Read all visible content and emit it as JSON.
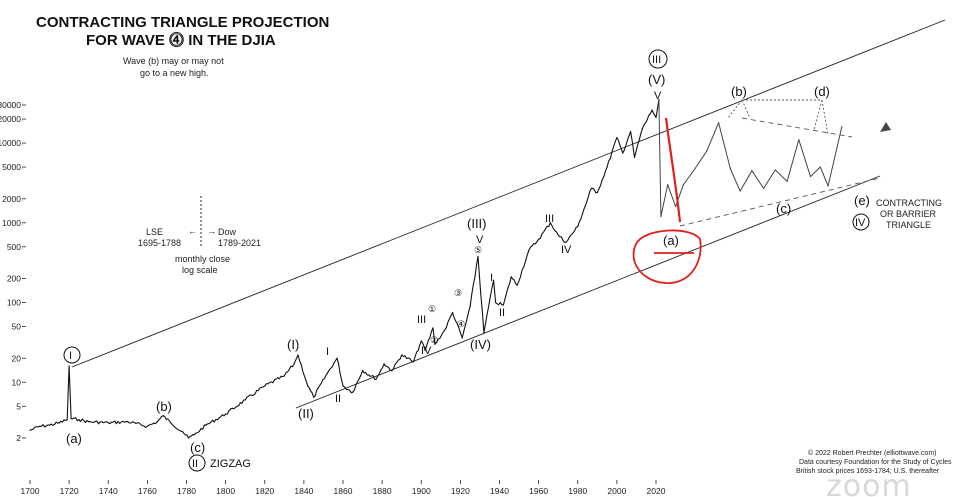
{
  "title_line1": "CONTRACTING TRIANGLE PROJECTION",
  "title_line2": "FOR WAVE ⓸ IN THE DJIA",
  "note_b_line1": "Wave (b) may or may not",
  "note_b_line2": "go to a new high.",
  "lse_label_1": "LSE",
  "lse_label_2": "1695-1788",
  "dow_label_1": "Dow",
  "dow_label_2": "1789-2021",
  "scale_note_1": "monthly close",
  "scale_note_2": "log scale",
  "zigzag_label": "ZIGZAG",
  "triangle_label_1": "CONTRACTING",
  "triangle_label_2": "OR BARRIER",
  "triangle_label_3": "TRIANGLE",
  "credit_1": "© 2022 Robert Prechter (elliottwave.com)",
  "credit_2": "Data courtesy Foundation for the Study of Cycles",
  "credit_3": "British stock prices 1693-1784; U.S. thereafter",
  "watermark": "zoom",
  "colors": {
    "price_line": "#111111",
    "channel": "#222222",
    "projection_dashed": "#555555",
    "annotation_red": "#e0201a"
  },
  "chart_data": {
    "type": "line",
    "title": "CONTRACTING TRIANGLE PROJECTION FOR WAVE ⓸ IN THE DJIA",
    "xlabel": "",
    "ylabel": "",
    "log_scale": true,
    "xlim": [
      1700,
      2150
    ],
    "ylim": [
      1,
      60000
    ],
    "x_ticks": [
      1700,
      1720,
      1740,
      1760,
      1780,
      1800,
      1820,
      1840,
      1860,
      1880,
      1900,
      1920,
      1940,
      1960,
      1980,
      2000,
      2020
    ],
    "y_ticks": [
      2,
      5,
      10,
      20,
      50,
      100,
      200,
      500,
      1000,
      2000,
      5000,
      10000,
      20000,
      30000
    ],
    "grid": false,
    "series": [
      {
        "name": "",
        "x": [
          1700,
          1705,
          1710,
          1715,
          1719,
          1720,
          1721,
          1725,
          1730,
          1740,
          1750,
          1760,
          1765,
          1768,
          1772,
          1778,
          1781,
          1784,
          1790,
          1800,
          1810,
          1820,
          1830,
          1835,
          1837,
          1842,
          1845,
          1852,
          1857,
          1860,
          1865,
          1870,
          1877,
          1881,
          1885,
          1890,
          1896,
          1900,
          1902,
          1906,
          1907,
          1912,
          1916,
          1921,
          1925,
          1929,
          1932,
          1937,
          1938,
          1942,
          1946,
          1949,
          1955,
          1960,
          1966,
          1970,
          1974,
          1980,
          1987,
          1990,
          1995,
          2000,
          2003,
          2007,
          2009,
          2013,
          2018,
          2020,
          2021.5
        ],
        "values": [
          2.5,
          2.8,
          2.9,
          3.1,
          3.4,
          16,
          3.5,
          3.4,
          3.2,
          3.1,
          3.2,
          2.8,
          3.2,
          3.8,
          3.1,
          2.4,
          2.0,
          2.2,
          2.9,
          4.0,
          6.0,
          9.0,
          12.0,
          17.0,
          22.0,
          9.0,
          6.5,
          13.0,
          20.0,
          9.0,
          7.5,
          14.0,
          11.0,
          17.0,
          14.0,
          22.0,
          18.0,
          33.0,
          25.0,
          48.0,
          30.0,
          45.0,
          75.0,
          36.0,
          90.0,
          380.0,
          42.0,
          190.0,
          100.0,
          93.0,
          210.0,
          165.0,
          450.0,
          620.0,
          1000.0,
          700.0,
          570.0,
          900.0,
          2700.0,
          2400.0,
          5000.0,
          11700.0,
          7500.0,
          14000.0,
          6600.0,
          15000.0,
          26000.0,
          21000.0,
          35000.0
        ]
      },
      {
        "name": "",
        "projection": true,
        "x": [
          2021.5,
          2022.5,
          2026,
          2030,
          2034,
          2040,
          2046,
          2052,
          2058,
          2063,
          2069,
          2075,
          2081,
          2087,
          2093,
          2099,
          2104,
          2108,
          2115
        ],
        "values": [
          35000,
          1200,
          3000,
          1600,
          3000,
          4800,
          8000,
          18000,
          4800,
          2500,
          4500,
          2700,
          4600,
          3300,
          11000,
          3800,
          5000,
          2900,
          16000
        ]
      }
    ],
    "wave_labels": [
      {
        "text": "Ⅰ",
        "x": 1720,
        "note": "circled I"
      },
      {
        "text": "(a)",
        "x": 1722
      },
      {
        "text": "(b)",
        "x": 1768
      },
      {
        "text": "(c)",
        "x": 1782
      },
      {
        "text": "Ⅱ",
        "x": 1782,
        "note": "circled II"
      },
      {
        "text": "(I)",
        "x": 1836
      },
      {
        "text": "(II)",
        "x": 1843
      },
      {
        "text": "I",
        "x": 1853
      },
      {
        "text": "II",
        "x": 1858
      },
      {
        "text": "III",
        "x": 1904
      },
      {
        "text": "IV",
        "x": 1907
      },
      {
        "text": "①",
        "x": 1918
      },
      {
        "text": "②",
        "x": 1922
      },
      {
        "text": "③",
        "x": 1919
      },
      {
        "text": "④",
        "x": 1921
      },
      {
        "text": "⑤",
        "x": 1929
      },
      {
        "text": "(III)",
        "x": 1929
      },
      {
        "text": "V",
        "x": 1929
      },
      {
        "text": "(IV)",
        "x": 1932
      },
      {
        "text": "I",
        "x": 1950
      },
      {
        "text": "II",
        "x": 1953
      },
      {
        "text": "III",
        "x": 1966
      },
      {
        "text": "IV",
        "x": 1974
      },
      {
        "text": "Ⅲ",
        "x": 2021,
        "note": "circled III"
      },
      {
        "text": "(V)",
        "x": 2021
      },
      {
        "text": "V",
        "x": 2021
      },
      {
        "text": "(a)",
        "x": 2028
      },
      {
        "text": "(b)",
        "x": 2052
      },
      {
        "text": "(c)",
        "x": 2075
      },
      {
        "text": "(d)",
        "x": 2093
      },
      {
        "text": "(e)",
        "x": 2113
      },
      {
        "text": "Ⅳ",
        "x": 2113,
        "note": "circled IV"
      }
    ]
  }
}
